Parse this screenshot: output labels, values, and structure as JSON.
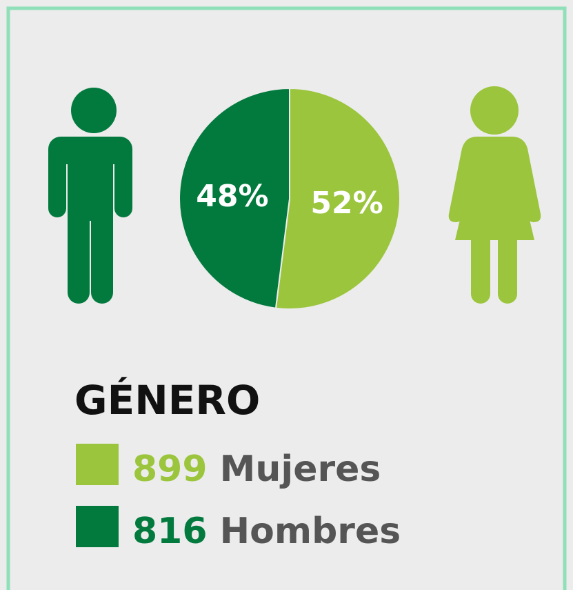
{
  "chart_data": {
    "type": "pie",
    "title": "GÉNERO",
    "categories": [
      "Mujeres",
      "Hombres"
    ],
    "values": [
      52,
      48
    ],
    "value_labels": [
      "52%",
      "48%"
    ],
    "counts": [
      899,
      816
    ],
    "colors": [
      "#9bc53d",
      "#027a3e"
    ]
  }
}
